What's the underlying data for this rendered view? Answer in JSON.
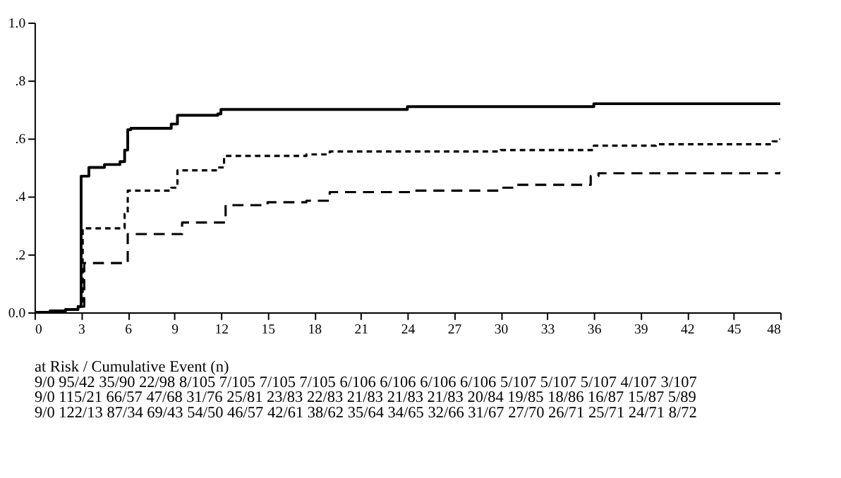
{
  "chart_data": {
    "type": "step",
    "xlim": [
      0,
      48
    ],
    "xticks": [
      0,
      3,
      6,
      9,
      12,
      15,
      18,
      21,
      24,
      27,
      30,
      33,
      36,
      39,
      42,
      45,
      48
    ],
    "ylim": [
      0,
      1.0
    ],
    "yticks": [
      {
        "value": 0,
        "label": "0.0"
      },
      {
        "value": 0.2,
        "label": ".2"
      },
      {
        "value": 0.4,
        "label": ".4"
      },
      {
        "value": 0.6,
        "label": ".6"
      },
      {
        "value": 0.8,
        "label": ".8"
      },
      {
        "value": 1.0,
        "label": "1.0"
      }
    ],
    "grid": false,
    "legend": false,
    "series": [
      {
        "color": "#000000",
        "line_style": "solid",
        "x": [
          0,
          1,
          2,
          2.8,
          3,
          3.5,
          4.5,
          5.5,
          5.8,
          6,
          6.2,
          8.8,
          9.2,
          11.8,
          12,
          24,
          36,
          48
        ],
        "values": [
          0,
          0.005,
          0.01,
          0.02,
          0.47,
          0.5,
          0.51,
          0.52,
          0.56,
          0.63,
          0.635,
          0.65,
          0.68,
          0.685,
          0.7,
          0.71,
          0.72,
          0.72
        ]
      },
      {
        "color": "#000000",
        "line_style": "dotted",
        "x": [
          0,
          1,
          2,
          2.8,
          3.1,
          5.8,
          6,
          8.8,
          9.2,
          11.8,
          12.2,
          17.5,
          19,
          30,
          36,
          40,
          47.5,
          48
        ],
        "values": [
          0,
          0.005,
          0.01,
          0.02,
          0.29,
          0.34,
          0.42,
          0.43,
          0.49,
          0.5,
          0.54,
          0.545,
          0.555,
          0.56,
          0.575,
          0.58,
          0.59,
          0.6
        ]
      },
      {
        "color": "#000000",
        "line_style": "dashed",
        "x": [
          0,
          1,
          2,
          2.8,
          3.2,
          6,
          9.5,
          12.3,
          15,
          17.5,
          19,
          24.5,
          30,
          31,
          35.8,
          36.3,
          48
        ],
        "values": [
          0,
          0.005,
          0.01,
          0.02,
          0.17,
          0.27,
          0.31,
          0.37,
          0.38,
          0.385,
          0.415,
          0.42,
          0.43,
          0.44,
          0.47,
          0.48,
          0.485
        ]
      }
    ],
    "annotations": [
      "at Risk / Cumulative Event (n)",
      "9/0   95/42   35/90   22/98   8/105   7/105   7/105   7/105   6/106   6/106   6/106   6/106   5/107   5/107   5/107   4/107   3/107",
      "9/0   115/21   66/57   47/68   31/76   25/81   23/83   22/83   21/83   21/83   21/83   20/84   19/85   18/86   16/87   15/87   5/89",
      "9/0   122/13   87/34   69/43   54/50   46/57   42/61   38/62   35/64   34/65   32/66   31/67   27/70   26/71   25/71   24/71   8/72"
    ]
  }
}
